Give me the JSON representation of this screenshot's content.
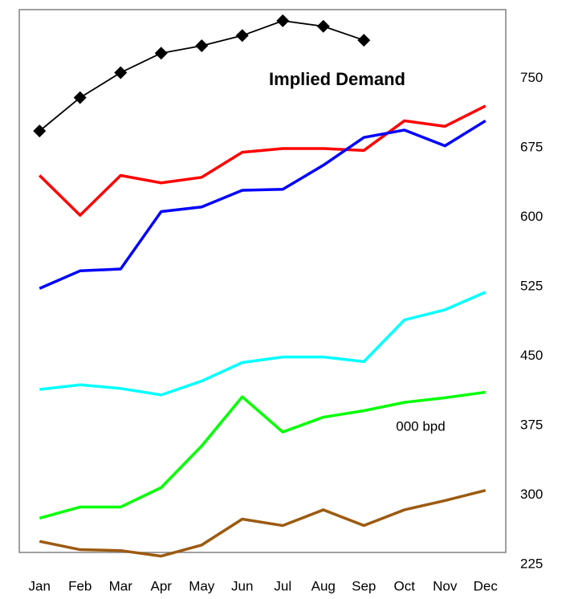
{
  "chart_data": {
    "type": "line",
    "annotations": [
      "000 bpd"
    ],
    "categories": [
      "Jan",
      "Feb",
      "Mar",
      "Apr",
      "May",
      "Jun",
      "Jul",
      "Aug",
      "Sep",
      "Oct",
      "Nov",
      "Dec"
    ],
    "series": [
      {
        "name": "Implied Demand",
        "color": "#000000",
        "marker": "diamond",
        "values": [
          693,
          729,
          756,
          777,
          785,
          796,
          812,
          806,
          791,
          null,
          null,
          null
        ]
      },
      {
        "color": "#ff0000",
        "values": [
          645,
          602,
          645,
          637,
          643,
          670,
          674,
          674,
          672,
          704,
          698,
          720
        ]
      },
      {
        "color": "#0000ff",
        "values": [
          523,
          542,
          544,
          606,
          611,
          629,
          630,
          656,
          686,
          694,
          677,
          704
        ]
      },
      {
        "color": "#00ffff",
        "values": [
          414,
          419,
          415,
          408,
          423,
          443,
          449,
          449,
          444,
          489,
          500,
          519
        ]
      },
      {
        "color": "#00ff00",
        "values": [
          275,
          287,
          287,
          308,
          353,
          406,
          368,
          384,
          391,
          400,
          405,
          411
        ]
      },
      {
        "color": "#9c5a10",
        "values": [
          250,
          241,
          240,
          234,
          246,
          274,
          267,
          284,
          267,
          284,
          294,
          305
        ]
      }
    ],
    "ylim": [
      238,
      824
    ],
    "yticks": [
      225,
      300,
      375,
      450,
      525,
      600,
      675,
      750
    ],
    "y_axis_side": "right"
  }
}
